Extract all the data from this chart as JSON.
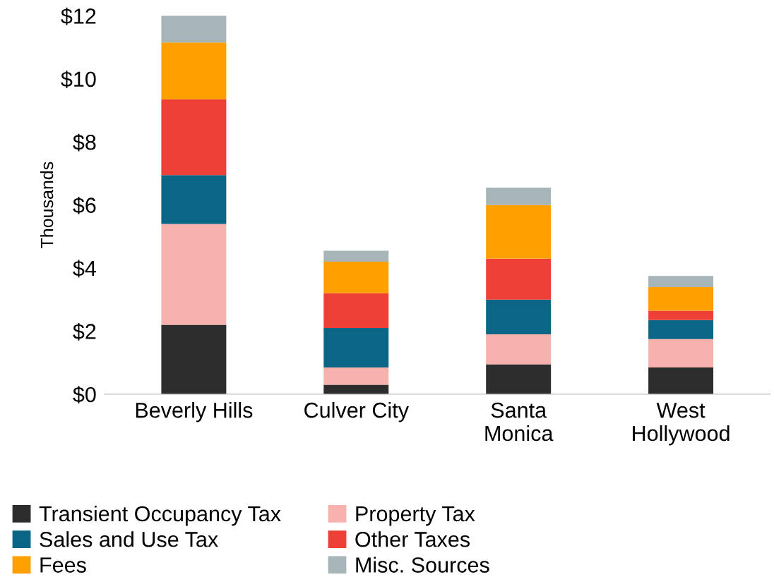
{
  "chart_data": {
    "type": "bar",
    "stacked": true,
    "ylabel": "Thousands",
    "categories": [
      "Beverly Hills",
      "Culver City",
      "Santa\nMonica",
      "West\nHollywood"
    ],
    "series": [
      {
        "name": "Transient Occupancy Tax",
        "color": "#2d2d2d",
        "values": [
          2.2,
          0.3,
          0.95,
          0.85
        ]
      },
      {
        "name": "Property Tax",
        "color": "#f7b2ae",
        "values": [
          3.2,
          0.55,
          0.95,
          0.9
        ]
      },
      {
        "name": "Sales and Use Tax",
        "color": "#0b6584",
        "values": [
          1.55,
          1.25,
          1.1,
          0.6
        ]
      },
      {
        "name": "Other Taxes",
        "color": "#ee4036",
        "values": [
          2.4,
          1.1,
          1.3,
          0.3
        ]
      },
      {
        "name": "Fees",
        "color": "#ff9f00",
        "values": [
          1.8,
          1.0,
          1.7,
          0.75
        ]
      },
      {
        "name": "Misc. Sources",
        "color": "#a7b5b9",
        "values": [
          0.85,
          0.35,
          0.55,
          0.35
        ]
      }
    ],
    "ylim": [
      0,
      12
    ],
    "yticks": [
      {
        "value": 0,
        "label": "$0"
      },
      {
        "value": 2,
        "label": "$2"
      },
      {
        "value": 4,
        "label": "$4"
      },
      {
        "value": 6,
        "label": "$6"
      },
      {
        "value": 8,
        "label": "$8"
      },
      {
        "value": 10,
        "label": "$10"
      },
      {
        "value": 12,
        "label": "$12"
      }
    ],
    "grid": false,
    "legend": "bottom"
  }
}
